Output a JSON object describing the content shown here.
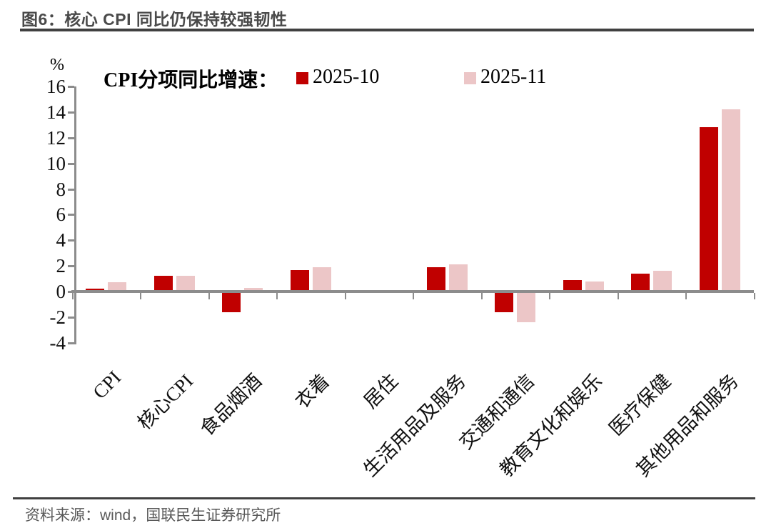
{
  "header": {
    "title": "图6：核心 CPI 同比仍保持较强韧性"
  },
  "chart_data": {
    "type": "bar",
    "legend_title": "CPI分项同比增速：",
    "ylabel": "%",
    "ylim": [
      -4,
      16
    ],
    "ytick_step": 2,
    "grid": false,
    "legend_position": "top",
    "categories": [
      "CPI",
      "核心CPI",
      "食品烟酒",
      "衣着",
      "居住",
      "生活用品及服务",
      "交通和通信",
      "教育文化和娱乐",
      "医疗保健",
      "其他用品和服务"
    ],
    "series": [
      {
        "name": "2025-10",
        "color": "#C00000",
        "values": [
          0.2,
          1.2,
          -1.6,
          1.7,
          0.1,
          1.9,
          -1.6,
          0.9,
          1.4,
          12.8
        ]
      },
      {
        "name": "2025-11",
        "color": "#ECC6C7",
        "values": [
          0.7,
          1.2,
          0.3,
          1.9,
          0.1,
          2.1,
          -2.4,
          0.8,
          1.6,
          14.2
        ]
      }
    ]
  },
  "footer": {
    "source": "资料来源：wind，国联民生证券研究所"
  },
  "colors": {
    "accent_dark_red": "#C00000",
    "accent_pink": "#ECC6C7",
    "axis_gray": "#8C8C8C",
    "title_gray": "#4A4A4A",
    "source_gray": "#595959"
  }
}
